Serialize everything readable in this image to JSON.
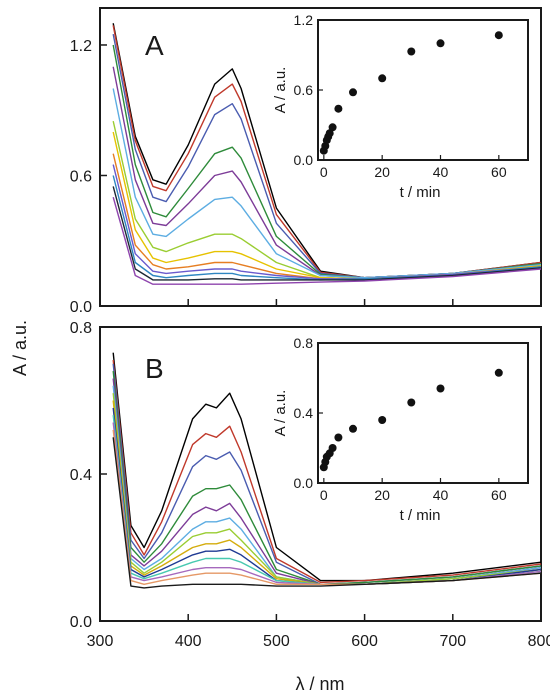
{
  "figure": {
    "xlabel": "λ / nm",
    "ylabel": "A / a.u.",
    "x_ticks": [
      "300",
      "400",
      "500",
      "600",
      "700",
      "800"
    ]
  },
  "chart_data": [
    {
      "panel": "A",
      "type": "line",
      "xlabel": "λ / nm",
      "ylabel": "A / a.u.",
      "xlim": [
        300,
        800
      ],
      "ylim": [
        0.0,
        1.37
      ],
      "y_ticks": [
        "0.0",
        "0.6",
        "1.2"
      ],
      "x_ticks": [
        "300",
        "400",
        "500",
        "600",
        "700",
        "800"
      ],
      "grid": false,
      "series": [
        {
          "color": "#000000",
          "values": [
            1.3,
            0.78,
            0.58,
            0.56,
            0.74,
            1.02,
            1.09,
            1.0,
            0.45,
            0.16,
            0.13,
            0.15,
            0.2
          ]
        },
        {
          "color": "#c0392b",
          "values": [
            1.29,
            0.76,
            0.55,
            0.53,
            0.7,
            0.96,
            1.02,
            0.94,
            0.42,
            0.155,
            0.13,
            0.15,
            0.2
          ]
        },
        {
          "color": "#4a5cb0",
          "values": [
            1.25,
            0.72,
            0.5,
            0.48,
            0.64,
            0.88,
            0.93,
            0.86,
            0.38,
            0.15,
            0.13,
            0.15,
            0.195
          ]
        },
        {
          "color": "#2e8b3a",
          "values": [
            1.2,
            0.65,
            0.43,
            0.41,
            0.54,
            0.7,
            0.73,
            0.68,
            0.32,
            0.145,
            0.13,
            0.15,
            0.195
          ]
        },
        {
          "color": "#7d3c98",
          "values": [
            1.1,
            0.58,
            0.38,
            0.37,
            0.47,
            0.6,
            0.62,
            0.57,
            0.28,
            0.14,
            0.13,
            0.15,
            0.19
          ]
        },
        {
          "color": "#5dade2",
          "values": [
            1.0,
            0.5,
            0.33,
            0.32,
            0.4,
            0.49,
            0.5,
            0.46,
            0.24,
            0.14,
            0.13,
            0.15,
            0.19
          ]
        },
        {
          "color": "#9acd32",
          "values": [
            0.85,
            0.4,
            0.27,
            0.25,
            0.29,
            0.33,
            0.33,
            0.31,
            0.2,
            0.13,
            0.125,
            0.145,
            0.185
          ]
        },
        {
          "color": "#e6c200",
          "values": [
            0.8,
            0.35,
            0.22,
            0.2,
            0.22,
            0.25,
            0.25,
            0.24,
            0.17,
            0.13,
            0.125,
            0.145,
            0.185
          ]
        },
        {
          "color": "#e67e22",
          "values": [
            0.7,
            0.28,
            0.19,
            0.17,
            0.18,
            0.2,
            0.2,
            0.19,
            0.15,
            0.125,
            0.125,
            0.145,
            0.18
          ]
        },
        {
          "color": "#6a5acd",
          "values": [
            0.65,
            0.24,
            0.16,
            0.15,
            0.16,
            0.17,
            0.17,
            0.16,
            0.14,
            0.125,
            0.125,
            0.145,
            0.18
          ]
        },
        {
          "color": "#2e86c1",
          "values": [
            0.6,
            0.2,
            0.14,
            0.13,
            0.14,
            0.15,
            0.15,
            0.14,
            0.13,
            0.12,
            0.125,
            0.14,
            0.18
          ]
        },
        {
          "color": "#1c2833",
          "values": [
            0.55,
            0.17,
            0.12,
            0.12,
            0.12,
            0.125,
            0.125,
            0.12,
            0.12,
            0.12,
            0.12,
            0.14,
            0.175
          ]
        },
        {
          "color": "#8e44ad",
          "values": [
            0.5,
            0.14,
            0.1,
            0.1,
            0.1,
            0.1,
            0.1,
            0.1,
            0.105,
            0.11,
            0.115,
            0.135,
            0.17
          ]
        }
      ],
      "x": [
        315,
        340,
        360,
        375,
        400,
        430,
        450,
        460,
        500,
        550,
        600,
        700,
        800
      ],
      "inset": {
        "type": "scatter",
        "xlabel": "t / min",
        "ylabel": "A / a.u.",
        "xlim": [
          -2,
          70
        ],
        "ylim": [
          0.0,
          1.2
        ],
        "x_ticks": [
          "0",
          "20",
          "40",
          "60"
        ],
        "y_ticks": [
          "0.0",
          "0.6",
          "1.2"
        ],
        "x": [
          0,
          0.5,
          1,
          1.5,
          2,
          3,
          5,
          10,
          20,
          30,
          40,
          60
        ],
        "y": [
          0.08,
          0.12,
          0.17,
          0.2,
          0.23,
          0.28,
          0.44,
          0.58,
          0.7,
          0.93,
          1.0,
          1.07
        ]
      }
    },
    {
      "panel": "B",
      "type": "line",
      "xlabel": "λ / nm",
      "ylabel": "A / a.u.",
      "xlim": [
        300,
        800
      ],
      "ylim": [
        0.0,
        0.8
      ],
      "y_ticks": [
        "0.0",
        "0.4",
        "0.8"
      ],
      "x_ticks": [
        "300",
        "400",
        "500",
        "600",
        "700",
        "800"
      ],
      "grid": false,
      "series": [
        {
          "color": "#000000",
          "values": [
            0.73,
            0.26,
            0.2,
            0.3,
            0.55,
            0.59,
            0.58,
            0.62,
            0.55,
            0.2,
            0.11,
            0.11,
            0.13,
            0.16
          ]
        },
        {
          "color": "#c0392b",
          "values": [
            0.71,
            0.24,
            0.18,
            0.27,
            0.48,
            0.51,
            0.5,
            0.53,
            0.46,
            0.17,
            0.105,
            0.11,
            0.125,
            0.155
          ]
        },
        {
          "color": "#4a5cb0",
          "values": [
            0.7,
            0.22,
            0.17,
            0.24,
            0.42,
            0.45,
            0.44,
            0.46,
            0.41,
            0.16,
            0.1,
            0.105,
            0.12,
            0.15
          ]
        },
        {
          "color": "#2e8b3a",
          "values": [
            0.68,
            0.2,
            0.16,
            0.21,
            0.34,
            0.36,
            0.36,
            0.37,
            0.33,
            0.14,
            0.1,
            0.105,
            0.12,
            0.15
          ]
        },
        {
          "color": "#7d3c98",
          "values": [
            0.66,
            0.18,
            0.15,
            0.19,
            0.29,
            0.31,
            0.3,
            0.32,
            0.28,
            0.13,
            0.1,
            0.1,
            0.115,
            0.145
          ]
        },
        {
          "color": "#5dade2",
          "values": [
            0.64,
            0.17,
            0.14,
            0.17,
            0.25,
            0.27,
            0.27,
            0.28,
            0.25,
            0.12,
            0.1,
            0.1,
            0.115,
            0.145
          ]
        },
        {
          "color": "#9acd32",
          "values": [
            0.62,
            0.16,
            0.13,
            0.16,
            0.23,
            0.24,
            0.24,
            0.25,
            0.22,
            0.12,
            0.1,
            0.1,
            0.115,
            0.14
          ]
        },
        {
          "color": "#d4ac0d",
          "values": [
            0.6,
            0.15,
            0.125,
            0.15,
            0.2,
            0.21,
            0.21,
            0.22,
            0.2,
            0.115,
            0.1,
            0.1,
            0.11,
            0.14
          ]
        },
        {
          "color": "#1f3a93",
          "values": [
            0.58,
            0.14,
            0.12,
            0.14,
            0.18,
            0.19,
            0.19,
            0.195,
            0.18,
            0.11,
            0.1,
            0.1,
            0.11,
            0.14
          ]
        },
        {
          "color": "#48c9b0",
          "values": [
            0.56,
            0.13,
            0.115,
            0.13,
            0.16,
            0.17,
            0.17,
            0.17,
            0.16,
            0.11,
            0.1,
            0.1,
            0.11,
            0.135
          ]
        },
        {
          "color": "#a569bd",
          "values": [
            0.54,
            0.12,
            0.11,
            0.12,
            0.14,
            0.145,
            0.145,
            0.145,
            0.14,
            0.105,
            0.1,
            0.1,
            0.11,
            0.135
          ]
        },
        {
          "color": "#e59866",
          "values": [
            0.52,
            0.11,
            0.1,
            0.11,
            0.125,
            0.13,
            0.13,
            0.13,
            0.125,
            0.1,
            0.1,
            0.1,
            0.11,
            0.13
          ]
        },
        {
          "color": "#1a1a1a",
          "values": [
            0.5,
            0.095,
            0.09,
            0.095,
            0.1,
            0.1,
            0.1,
            0.1,
            0.1,
            0.095,
            0.095,
            0.1,
            0.11,
            0.13
          ]
        }
      ],
      "x": [
        315,
        335,
        350,
        370,
        405,
        420,
        432,
        447,
        460,
        500,
        550,
        600,
        700,
        800
      ],
      "inset": {
        "type": "scatter",
        "xlabel": "t / min",
        "ylabel": "A / a.u.",
        "xlim": [
          -2,
          70
        ],
        "ylim": [
          0.0,
          0.8
        ],
        "x_ticks": [
          "0",
          "20",
          "40",
          "60"
        ],
        "y_ticks": [
          "0.0",
          "0.4",
          "0.8"
        ],
        "x": [
          0,
          0.5,
          1,
          2,
          3,
          5,
          10,
          20,
          30,
          40,
          60
        ],
        "y": [
          0.09,
          0.12,
          0.15,
          0.17,
          0.2,
          0.26,
          0.31,
          0.36,
          0.46,
          0.54,
          0.63
        ]
      }
    }
  ]
}
